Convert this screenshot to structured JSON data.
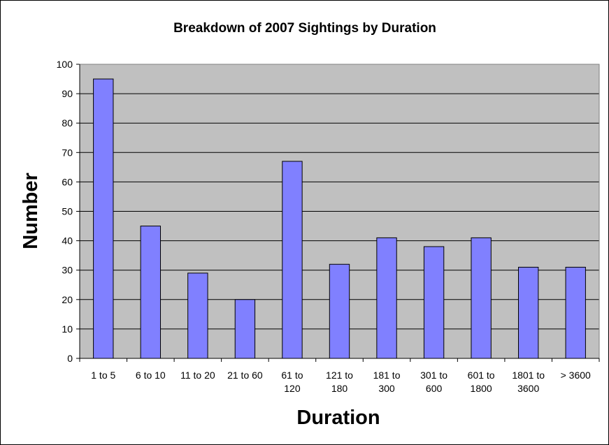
{
  "chart_data": {
    "type": "bar",
    "title": "Breakdown of 2007 Sightings by Duration",
    "xlabel": "Duration",
    "ylabel": "Number",
    "categories": [
      [
        "1 to 5"
      ],
      [
        "6 to 10"
      ],
      [
        "11 to 20"
      ],
      [
        "21 to 60"
      ],
      [
        "61 to",
        "120"
      ],
      [
        "121 to",
        "180"
      ],
      [
        "181 to",
        "300"
      ],
      [
        "301 to",
        "600"
      ],
      [
        "601 to",
        "1800"
      ],
      [
        "1801 to",
        "3600"
      ],
      [
        "> 3600"
      ]
    ],
    "values": [
      95,
      45,
      29,
      20,
      67,
      32,
      41,
      38,
      41,
      31,
      31
    ],
    "ylim": [
      0,
      100
    ],
    "yticks": [
      0,
      10,
      20,
      30,
      40,
      50,
      60,
      70,
      80,
      90,
      100
    ],
    "grid": true,
    "legend": "none",
    "colors": {
      "bar_fill": "#8080ff",
      "bar_stroke": "#000000",
      "plot_background": "#c0c0c0",
      "gridline": "#000000"
    }
  }
}
